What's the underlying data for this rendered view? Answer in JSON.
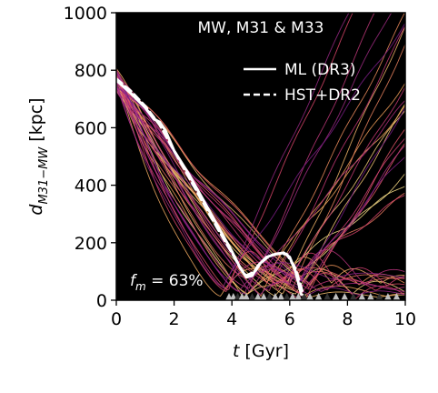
{
  "chart_data": {
    "type": "line",
    "title": "MW, M31 & M33",
    "xlabel": "t [Gyr]",
    "ylabel": "d_{M31−MW} [kpc]",
    "xlim": [
      0,
      10
    ],
    "ylim": [
      0,
      1000
    ],
    "x_ticks": [
      0,
      2,
      4,
      6,
      8,
      10
    ],
    "y_ticks": [
      0,
      200,
      400,
      600,
      800,
      1000
    ],
    "x_tick_labels": [
      "0",
      "2",
      "4",
      "6",
      "8",
      "10"
    ],
    "y_tick_labels": [
      "0",
      "200",
      "400",
      "600",
      "800",
      "1000"
    ],
    "background": "#000000",
    "grid": false,
    "legend_position": "top-right",
    "annotation": "f_m = 63%",
    "legend": [
      {
        "name": "ML (DR3)",
        "style": "solid",
        "color": "#ffffff"
      },
      {
        "name": "HST+DR2",
        "style": "dashed",
        "color": "#ffffff"
      }
    ],
    "series": [
      {
        "name": "ML (DR3)",
        "style": "solid",
        "color": "#ffffff",
        "x": [
          0,
          0.5,
          1.0,
          1.3,
          1.5,
          1.7,
          2.0,
          2.5,
          3.0,
          3.5,
          4.0,
          4.3,
          4.5,
          4.7,
          4.9,
          5.2,
          5.5,
          5.8,
          6.0,
          6.2,
          6.4
        ],
        "y": [
          765,
          720,
          670,
          630,
          620,
          590,
          520,
          440,
          350,
          260,
          170,
          110,
          80,
          85,
          120,
          150,
          160,
          165,
          150,
          100,
          20
        ]
      },
      {
        "name": "HST+DR2",
        "style": "dashed",
        "color": "#ffffff",
        "x": [
          0,
          0.5,
          1.0,
          1.5,
          2.0,
          2.5,
          3.0,
          3.5,
          4.0,
          4.3,
          4.5,
          4.8,
          5.0,
          5.3,
          5.6,
          5.9,
          6.2,
          6.5
        ],
        "y": [
          770,
          728,
          675,
          610,
          520,
          430,
          340,
          250,
          165,
          110,
          85,
          100,
          130,
          155,
          162,
          160,
          110,
          10
        ]
      }
    ],
    "ensemble": {
      "count": 40,
      "colormap": [
        "#f8e08a",
        "#f6a35a",
        "#e0486b",
        "#b7337f",
        "#7a1d8c"
      ],
      "description_for_rendering_only": "many thin orbits from the same start region fanning out; some merge early, some rebound and rise toward the right"
    },
    "merger_markers": {
      "color_light": "#c0c0c0",
      "color_dark": "#333333",
      "x": [
        3.9,
        4.05,
        4.2,
        4.35,
        4.5,
        4.7,
        4.9,
        5.1,
        5.3,
        5.5,
        5.7,
        5.9,
        6.1,
        6.3,
        6.5,
        6.7,
        7.0,
        7.3,
        7.6,
        7.9,
        8.2,
        8.5,
        8.8,
        9.1,
        9.4,
        9.7
      ]
    }
  }
}
